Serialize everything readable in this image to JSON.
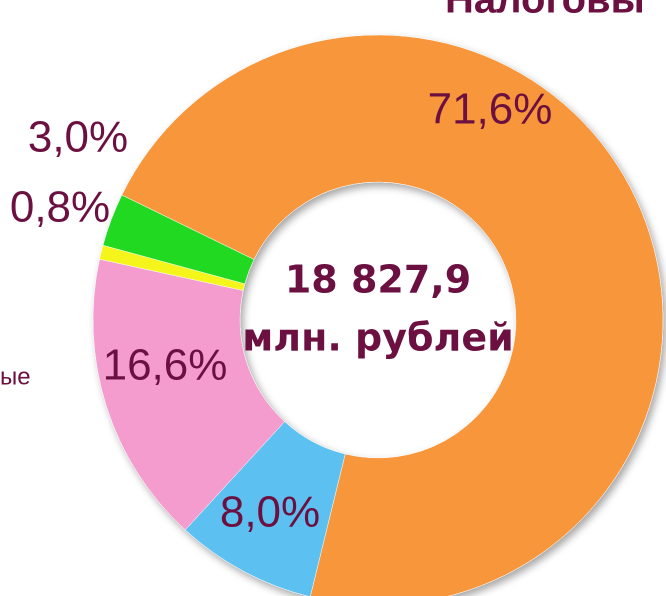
{
  "chart_data": {
    "type": "donut",
    "title": "Налоговы",
    "legend_fragment": "ые",
    "center_text": [
      "18 827,9",
      "млн. рублей"
    ],
    "values": [
      71.6,
      8.0,
      16.6,
      0.8,
      3.0
    ],
    "value_labels": [
      "71,6%",
      "8,0%",
      "16,6%",
      "0,8%",
      "3,0%"
    ],
    "colors": [
      "#f7963a",
      "#5bc0f0",
      "#f59ccf",
      "#f5f51a",
      "#22d922"
    ]
  }
}
